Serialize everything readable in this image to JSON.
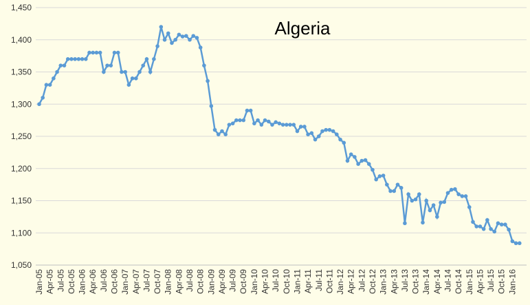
{
  "chart_data": {
    "type": "line",
    "title": "Algeria",
    "categories": [
      "Jan-05",
      null,
      null,
      "Apr-05",
      null,
      null,
      "Jul-05",
      null,
      null,
      "Oct-05",
      null,
      null,
      "Jan-06",
      null,
      null,
      "Apr-06",
      null,
      null,
      "Jul-06",
      null,
      null,
      "Oct-06",
      null,
      null,
      "Jan-07",
      null,
      null,
      "Apr-07",
      null,
      null,
      "Jul-07",
      null,
      null,
      "Oct-07",
      null,
      null,
      "Jan-08",
      null,
      null,
      "Apr-08",
      null,
      null,
      "Jul-08",
      null,
      null,
      "Oct-08",
      null,
      null,
      "Jan-09",
      null,
      null,
      "Apr-09",
      null,
      null,
      "Jul-09",
      null,
      null,
      "Oct-09",
      null,
      null,
      "Jan-10",
      null,
      null,
      "Apr-10",
      null,
      null,
      "Jul-10",
      null,
      null,
      "Oct-10",
      null,
      null,
      "Jan-11",
      null,
      null,
      "Apr-11",
      null,
      null,
      "Jul-11",
      null,
      null,
      "Oct-11",
      null,
      null,
      "Jan-12",
      null,
      null,
      "Apr-12",
      null,
      null,
      "Jul-12",
      null,
      null,
      "Oct-12",
      null,
      null,
      "Jan-13",
      null,
      null,
      "Apr-13",
      null,
      null,
      "Jul-13",
      null,
      null,
      "Oct-13",
      null,
      null,
      "Jan-14",
      null,
      null,
      "Apr-14",
      null,
      null,
      "Jul-14",
      null,
      null,
      "Oct-14",
      null,
      null,
      "Jan-15",
      null,
      null,
      "Apr-15",
      null,
      null,
      "Jul-15",
      null,
      null,
      "Oct-15",
      null,
      null,
      "Jan-16",
      null,
      null
    ],
    "values": [
      1300,
      1310,
      1330,
      1330,
      1340,
      1350,
      1360,
      1360,
      1370,
      1370,
      1370,
      1370,
      1370,
      1370,
      1380,
      1380,
      1380,
      1380,
      1350,
      1360,
      1360,
      1380,
      1380,
      1350,
      1350,
      1330,
      1340,
      1340,
      1350,
      1360,
      1370,
      1350,
      1370,
      1390,
      1420,
      1400,
      1410,
      1395,
      1400,
      1408,
      1405,
      1406,
      1400,
      1406,
      1403,
      1388,
      1360,
      1336,
      1297,
      1260,
      1253,
      1258,
      1253,
      1268,
      1270,
      1275,
      1275,
      1275,
      1290,
      1290,
      1270,
      1275,
      1268,
      1275,
      1273,
      1268,
      1272,
      1270,
      1268,
      1268,
      1268,
      1268,
      1258,
      1265,
      1265,
      1253,
      1255,
      1245,
      1250,
      1258,
      1260,
      1260,
      1258,
      1253,
      1245,
      1240,
      1212,
      1222,
      1218,
      1207,
      1212,
      1213,
      1207,
      1198,
      1183,
      1188,
      1189,
      1175,
      1165,
      1165,
      1175,
      1170,
      1115,
      1160,
      1150,
      1152,
      1160,
      1116,
      1150,
      1135,
      1143,
      1125,
      1147,
      1148,
      1162,
      1167,
      1168,
      1160,
      1157,
      1157,
      1140,
      1117,
      1110,
      1110,
      1106,
      1120,
      1106,
      1102,
      1115,
      1113,
      1113,
      1105,
      1087,
      1084,
      1084
    ],
    "color": "#5b9bd5",
    "ylim": [
      1050,
      1450
    ],
    "yticks": [
      {
        "value": 1050,
        "label": "1,050"
      },
      {
        "value": 1100,
        "label": "1,100"
      },
      {
        "value": 1150,
        "label": "1,150"
      },
      {
        "value": 1200,
        "label": "1,200"
      },
      {
        "value": 1250,
        "label": "1,250"
      },
      {
        "value": 1300,
        "label": "1,300"
      },
      {
        "value": 1350,
        "label": "1,350"
      },
      {
        "value": 1400,
        "label": "1,400"
      },
      {
        "value": 1450,
        "label": "1,450"
      }
    ],
    "grid": true
  }
}
